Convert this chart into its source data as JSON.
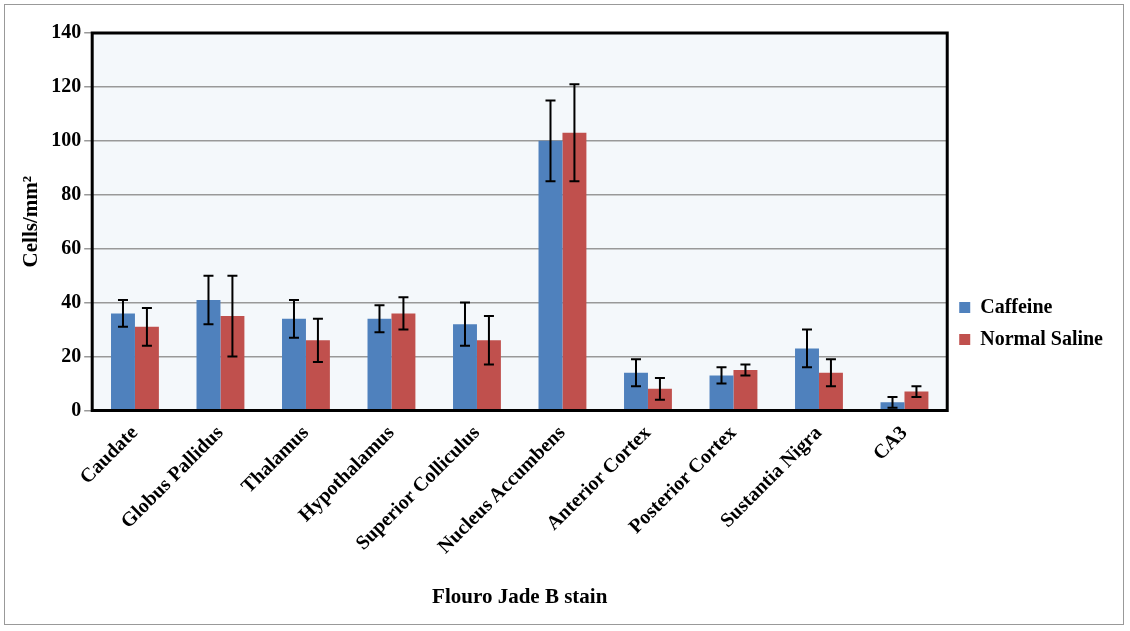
{
  "chart_data": {
    "type": "bar",
    "xlabel": "Flouro Jade B stain",
    "ylabel": "Cells/mm²",
    "categories": [
      "Caudate",
      "Globus Pallidus",
      "Thalamus",
      "Hypothalamus",
      "Superior Colliculus",
      "Nucleus Accumbens",
      "Anterior Cortex",
      "Posterior Cortex",
      "Sustantia Nigra",
      "CA3"
    ],
    "series": [
      {
        "name": "Caffeine",
        "color": "#4f81bd",
        "values": [
          36,
          41,
          34,
          34,
          32,
          100,
          14,
          13,
          23,
          3
        ],
        "errors": [
          5,
          9,
          7,
          5,
          8,
          15,
          5,
          3,
          7,
          2
        ]
      },
      {
        "name": "Normal Saline",
        "color": "#c0504d",
        "values": [
          31,
          35,
          26,
          36,
          26,
          103,
          8,
          15,
          14,
          7
        ],
        "errors": [
          7,
          15,
          8,
          6,
          9,
          18,
          4,
          2,
          5,
          2
        ]
      }
    ],
    "ylim": [
      0,
      140
    ],
    "yticks": [
      0,
      20,
      40,
      60,
      80,
      100,
      120,
      140
    ],
    "grid": "y",
    "legend": "right"
  }
}
